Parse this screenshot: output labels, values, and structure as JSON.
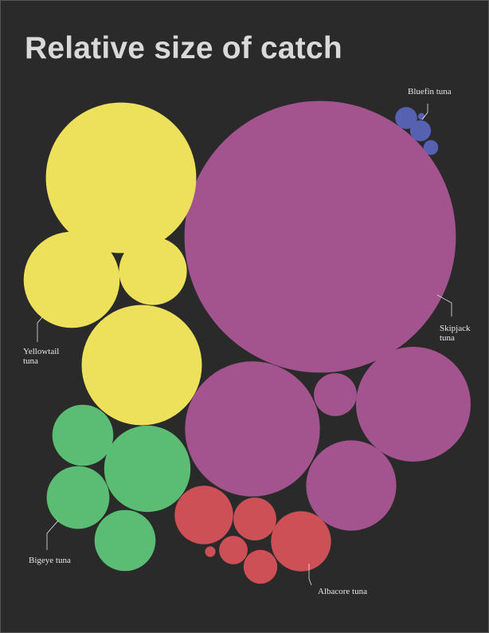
{
  "chart_data": {
    "type": "bubble",
    "title": "Relative size of catch",
    "background_color": "#2a2a2a",
    "title_color": "#d9d9d9",
    "label_color": "#e6e6e6",
    "series": [
      {
        "name": "Bluefin tuna",
        "label_lines": [
          "Bluefin tuna"
        ],
        "color": "#5661b2",
        "values": [
          0.22,
          0.02,
          0.2,
          0.1
        ]
      },
      {
        "name": "Skipjack tuna",
        "label_lines": [
          "Skipjack",
          "tuna"
        ],
        "color": "#a3538e",
        "values": [
          33.6,
          8.3,
          0.84,
          6.0,
          3.7
        ]
      },
      {
        "name": "Yellowtail tuna",
        "label_lines": [
          "Yellowtail",
          "tuna"
        ],
        "color": "#ede05b",
        "values": [
          10.3,
          4.2,
          2.1,
          6.6
        ]
      },
      {
        "name": "Bigeye tuna",
        "label_lines": [
          "Bigeye tuna"
        ],
        "color": "#5abd73",
        "values": [
          1.7,
          3.4,
          1.8,
          1.7
        ]
      },
      {
        "name": "Albacore tuna",
        "label_lines": [
          "Albacore tuna"
        ],
        "color": "#cd5057",
        "values": [
          1.56,
          0.84,
          0.05,
          0.37,
          0.52,
          1.64
        ]
      }
    ]
  }
}
